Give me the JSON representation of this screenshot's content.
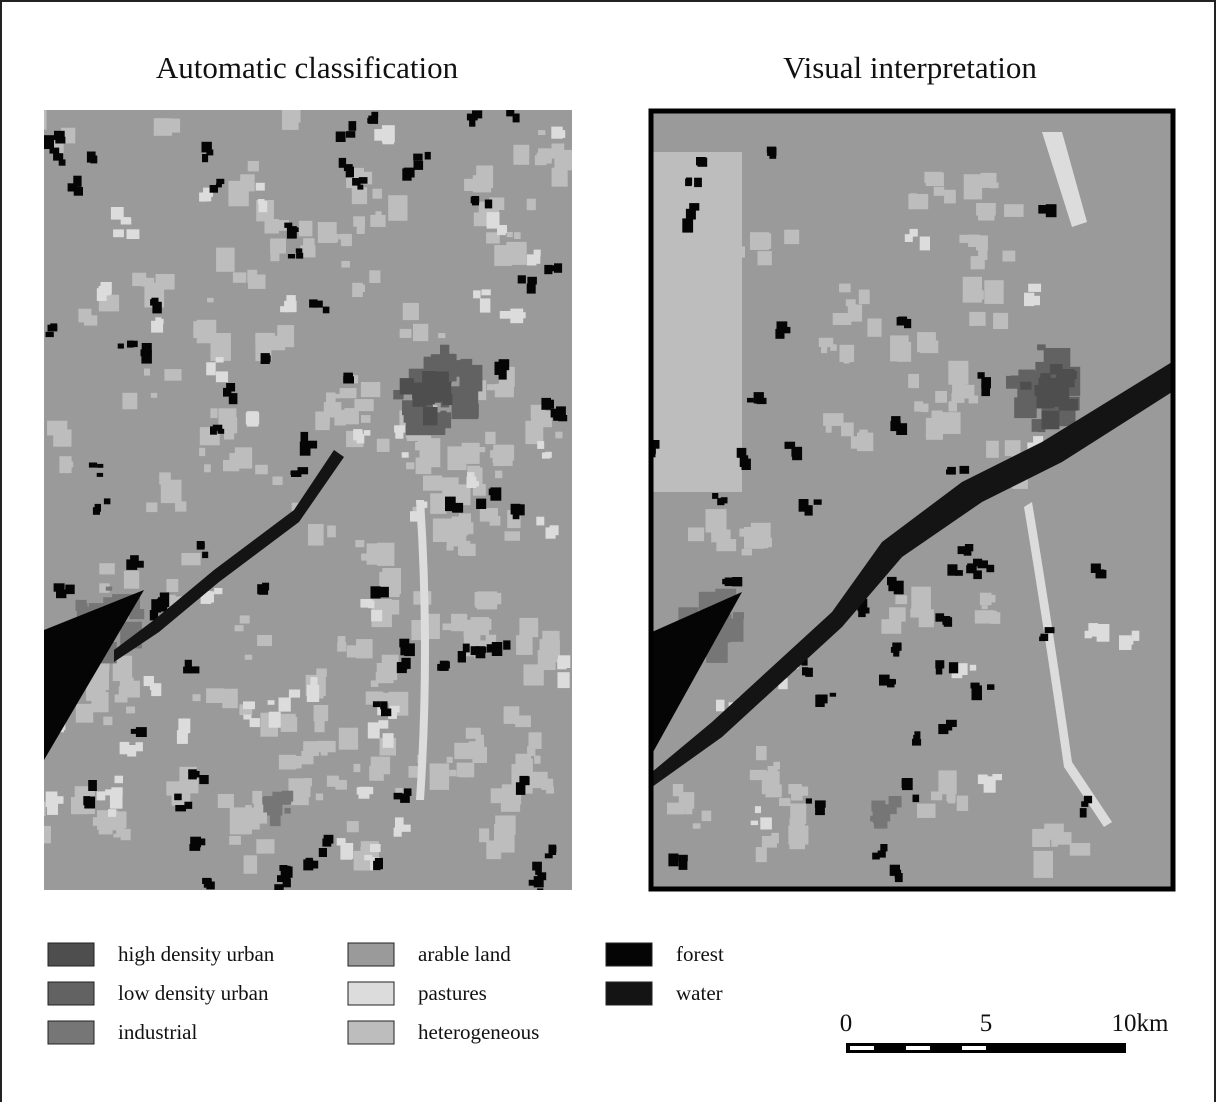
{
  "maps": [
    {
      "title": "Automatic classification"
    },
    {
      "title": "Visual interpretation"
    }
  ],
  "legend": [
    {
      "label": "high density urban",
      "color": "#4e4e4e"
    },
    {
      "label": "low density urban",
      "color": "#626262"
    },
    {
      "label": "industrial",
      "color": "#767676"
    },
    {
      "label": "arable land",
      "color": "#9a9a9a"
    },
    {
      "label": "pastures",
      "color": "#dcdcdc"
    },
    {
      "label": "heterogeneous",
      "color": "#bdbdbd"
    },
    {
      "label": "forest",
      "color": "#050505"
    },
    {
      "label": "water",
      "color": "#141414"
    }
  ],
  "scale_bar": {
    "labels": [
      "0",
      "5",
      "10km"
    ]
  }
}
